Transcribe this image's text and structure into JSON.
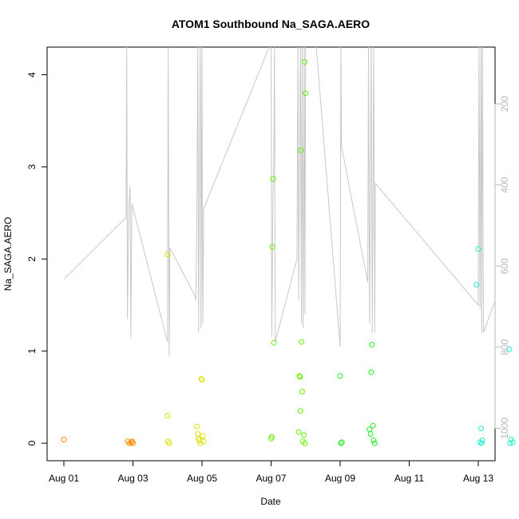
{
  "chart_data": {
    "type": "scatter",
    "title": "ATOM1 Southbound Na_SAGA.AERO",
    "xlabel": "Date",
    "ylabel": "Na_SAGA.AERO",
    "x_ticks": [
      "Aug 01",
      "Aug 03",
      "Aug 05",
      "Aug 07",
      "Aug 09",
      "Aug 11",
      "Aug 13"
    ],
    "x_range_days": [
      0.0,
      12.47
    ],
    "y_ticks": [
      0,
      1,
      2,
      3,
      4
    ],
    "ylim": [
      -0.19,
      4.3
    ],
    "y2_ticks": [
      200,
      400,
      600,
      800,
      1000
    ],
    "y2_range": [
      60,
      1080
    ],
    "y2_reversed": true,
    "grid": false,
    "background_line_color": "#c8c8c8",
    "series": [
      {
        "color": "#ff8c00",
        "points": [
          [
            0.0,
            0.04
          ],
          [
            1.85,
            0.02
          ],
          [
            1.9,
            0.0
          ],
          [
            1.95,
            0.01
          ],
          [
            1.98,
            0.02
          ],
          [
            2.0,
            0.0
          ]
        ]
      },
      {
        "color": "#e0e000",
        "points": [
          [
            3.0,
            2.05
          ],
          [
            3.0,
            0.3
          ],
          [
            3.02,
            0.02
          ],
          [
            3.05,
            0.0
          ],
          [
            3.85,
            0.18
          ],
          [
            3.88,
            0.1
          ],
          [
            3.9,
            0.05
          ],
          [
            3.92,
            0.03
          ],
          [
            3.95,
            0.0
          ],
          [
            3.98,
            0.7
          ],
          [
            4.0,
            0.69
          ],
          [
            4.02,
            0.08
          ],
          [
            4.05,
            0.02
          ]
        ]
      },
      {
        "color": "#66ee00",
        "points": [
          [
            6.0,
            0.05
          ],
          [
            6.02,
            0.07
          ],
          [
            6.04,
            2.13
          ],
          [
            6.06,
            2.87
          ],
          [
            6.08,
            1.09
          ],
          [
            6.8,
            0.12
          ],
          [
            6.82,
            0.73
          ],
          [
            6.84,
            0.72
          ],
          [
            6.86,
            3.18
          ],
          [
            6.88,
            1.1
          ],
          [
            6.9,
            0.56
          ],
          [
            6.85,
            0.35
          ],
          [
            6.95,
            0.09
          ],
          [
            6.97,
            4.14
          ],
          [
            7.0,
            3.8
          ],
          [
            6.92,
            0.02
          ],
          [
            6.98,
            0.0
          ]
        ]
      },
      {
        "color": "#22ee22",
        "points": [
          [
            8.0,
            0.73
          ],
          [
            8.02,
            0.0
          ],
          [
            8.05,
            0.01
          ],
          [
            8.85,
            0.15
          ],
          [
            8.88,
            0.1
          ],
          [
            8.9,
            0.77
          ],
          [
            8.92,
            1.07
          ],
          [
            8.95,
            0.19
          ],
          [
            8.97,
            0.03
          ],
          [
            9.0,
            0.0
          ]
        ]
      },
      {
        "color": "#22eecc",
        "points": [
          [
            11.95,
            1.72
          ],
          [
            12.0,
            2.11
          ],
          [
            12.05,
            0.01
          ],
          [
            12.08,
            0.16
          ],
          [
            12.1,
            0.0
          ],
          [
            12.12,
            0.03
          ],
          [
            12.9,
            1.02
          ],
          [
            12.95,
            0.04
          ],
          [
            13.0,
            0.01
          ],
          [
            12.92,
            0.0
          ]
        ]
      }
    ],
    "background_line_points": [
      [
        0.0,
        1.78
      ],
      [
        1.8,
        2.45
      ],
      [
        1.82,
        4.35
      ],
      [
        1.84,
        1.35
      ],
      [
        1.88,
        2.55
      ],
      [
        1.92,
        2.8
      ],
      [
        1.94,
        1.15
      ],
      [
        1.97,
        2.6
      ],
      [
        3.0,
        1.1
      ],
      [
        3.02,
        4.35
      ],
      [
        3.05,
        0.95
      ],
      [
        3.07,
        2.12
      ],
      [
        3.8,
        1.6
      ],
      [
        3.82,
        1.55
      ],
      [
        3.85,
        2.4
      ],
      [
        3.88,
        4.35
      ],
      [
        3.9,
        1.2
      ],
      [
        3.95,
        4.35
      ],
      [
        3.97,
        1.25
      ],
      [
        4.0,
        4.35
      ],
      [
        4.02,
        1.3
      ],
      [
        4.05,
        2.55
      ],
      [
        6.0,
        4.35
      ],
      [
        6.02,
        1.15
      ],
      [
        6.05,
        2.56
      ],
      [
        6.08,
        3.2
      ],
      [
        6.1,
        4.35
      ],
      [
        6.12,
        1.1
      ],
      [
        6.75,
        2.0
      ],
      [
        6.78,
        4.35
      ],
      [
        6.8,
        1.55
      ],
      [
        6.85,
        4.35
      ],
      [
        6.88,
        1.3
      ],
      [
        6.9,
        4.35
      ],
      [
        6.93,
        1.25
      ],
      [
        6.96,
        4.35
      ],
      [
        6.98,
        1.4
      ],
      [
        7.0,
        4.35
      ],
      [
        7.3,
        4.35
      ],
      [
        8.0,
        1.05
      ],
      [
        8.02,
        4.35
      ],
      [
        8.04,
        3.22
      ],
      [
        8.8,
        1.75
      ],
      [
        8.82,
        4.35
      ],
      [
        8.85,
        1.3
      ],
      [
        8.9,
        4.35
      ],
      [
        8.93,
        1.2
      ],
      [
        8.97,
        4.35
      ],
      [
        9.0,
        1.2
      ],
      [
        9.02,
        2.82
      ],
      [
        12.0,
        1.5
      ],
      [
        12.02,
        4.35
      ],
      [
        12.05,
        1.45
      ],
      [
        12.08,
        4.35
      ],
      [
        12.1,
        1.2
      ],
      [
        12.12,
        4.35
      ],
      [
        12.15,
        1.2
      ],
      [
        12.9,
        1.97
      ],
      [
        12.92,
        4.35
      ],
      [
        12.95,
        1.55
      ],
      [
        12.97,
        3.2
      ]
    ]
  }
}
